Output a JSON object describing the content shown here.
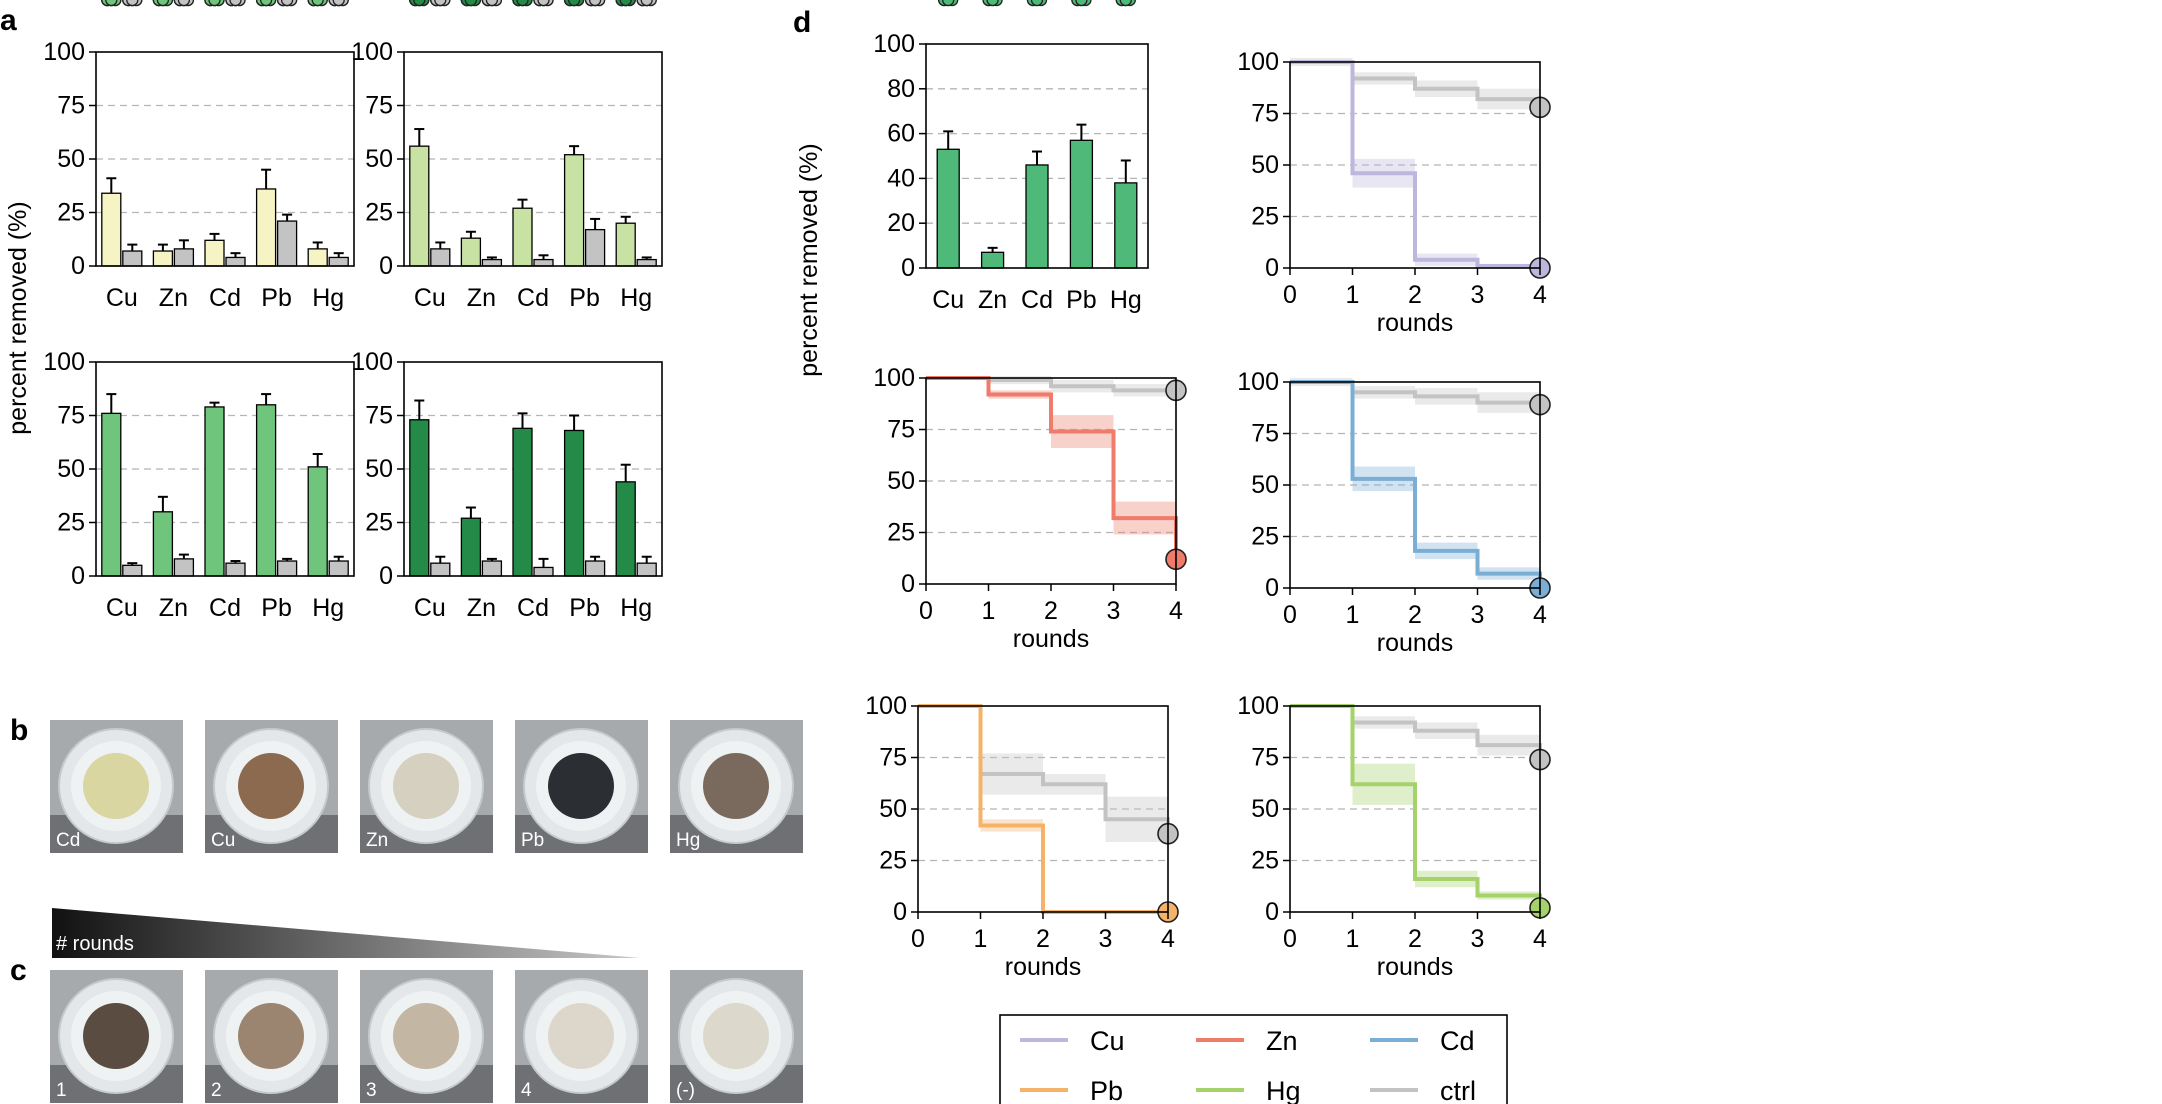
{
  "figure": {
    "panel_labels": [
      "a",
      "b",
      "c",
      "d"
    ],
    "ylabel": "percent removed (%)",
    "xlabel_rounds": "rounds",
    "rounds_gradient_label": "# rounds"
  },
  "colors": {
    "panel_a_1": "#f6f3c4",
    "panel_a_2": "#c7e2a3",
    "panel_a_3": "#6fc57c",
    "panel_a_4": "#238a47",
    "panel_d_bar": "#4fb97a",
    "ctrl": "#c3c3c3",
    "Cu": "#bdb6dd",
    "Zn": "#ef7c6b",
    "Cd": "#7aaed4",
    "Pb": "#f5b36a",
    "Hg": "#a6d26a"
  },
  "chart_data": [
    {
      "id": "a1",
      "type": "bar",
      "ylim": [
        0,
        100
      ],
      "yticks": [
        0,
        25,
        50,
        75,
        100
      ],
      "categories": [
        "Cu",
        "Zn",
        "Cd",
        "Pb",
        "Hg"
      ],
      "series": [
        {
          "values": [
            34,
            7,
            12,
            36,
            8
          ],
          "errors": [
            7,
            3,
            3,
            9,
            3
          ],
          "points": [
            [
              33,
              41,
              22
            ],
            [
              6,
              9,
              5
            ],
            [
              11,
              15,
              10
            ],
            [
              36,
              47,
              27
            ],
            [
              7,
              11,
              6
            ]
          ]
        },
        {
          "values": [
            7,
            8,
            4,
            21,
            4
          ],
          "errors": [
            3,
            4,
            2,
            3,
            2
          ],
          "points": [
            [
              6,
              9,
              5
            ],
            [
              7,
              12,
              5
            ],
            [
              4,
              6,
              3
            ],
            [
              21,
              24,
              19
            ],
            [
              4,
              5,
              3
            ]
          ]
        }
      ]
    },
    {
      "id": "a2",
      "type": "bar",
      "ylim": [
        0,
        100
      ],
      "yticks": [
        0,
        25,
        50,
        75,
        100
      ],
      "categories": [
        "Cu",
        "Zn",
        "Cd",
        "Pb",
        "Hg"
      ],
      "series": [
        {
          "values": [
            56,
            13,
            27,
            52,
            20
          ],
          "errors": [
            8,
            3,
            4,
            4,
            3
          ],
          "points": [
            [
              48,
              61,
              63
            ],
            [
              12,
              15,
              13
            ],
            [
              26,
              31,
              25
            ],
            [
              49,
              55,
              57
            ],
            [
              19,
              22,
              21
            ]
          ]
        },
        {
          "values": [
            8,
            3,
            3,
            17,
            3
          ],
          "errors": [
            3,
            1,
            2,
            5,
            1
          ],
          "points": [
            [
              7,
              10,
              7
            ],
            [
              3,
              4,
              2
            ],
            [
              3,
              4,
              2
            ],
            [
              14,
              21,
              16
            ],
            [
              3,
              2,
              3
            ]
          ]
        }
      ]
    },
    {
      "id": "a3",
      "type": "bar",
      "ylim": [
        0,
        100
      ],
      "yticks": [
        0,
        25,
        50,
        75,
        100
      ],
      "categories": [
        "Cu",
        "Zn",
        "Cd",
        "Pb",
        "Hg"
      ],
      "series": [
        {
          "values": [
            76,
            30,
            79,
            80,
            51
          ],
          "errors": [
            9,
            7,
            2,
            5,
            6
          ],
          "points": [
            [
              67,
              76,
              86
            ],
            [
              21,
              30,
              37
            ],
            [
              78,
              79,
              81
            ],
            [
              74,
              80,
              86
            ],
            [
              44,
              51,
              58
            ]
          ]
        },
        {
          "values": [
            5,
            8,
            6,
            7,
            7
          ],
          "errors": [
            1,
            2,
            1,
            1,
            2
          ],
          "points": [
            [
              5,
              4,
              5
            ],
            [
              8,
              10,
              7
            ],
            [
              6,
              6,
              6
            ],
            [
              7,
              6,
              7
            ],
            [
              7,
              9,
              6
            ]
          ]
        }
      ]
    },
    {
      "id": "a4",
      "type": "bar",
      "ylim": [
        0,
        100
      ],
      "yticks": [
        0,
        25,
        50,
        75,
        100
      ],
      "categories": [
        "Cu",
        "Zn",
        "Cd",
        "Pb",
        "Hg"
      ],
      "series": [
        {
          "values": [
            73,
            27,
            69,
            68,
            44
          ],
          "errors": [
            9,
            5,
            7,
            7,
            8
          ],
          "points": [
            [
              62,
              77,
              83
            ],
            [
              20,
              27,
              31
            ],
            [
              61,
              69,
              77
            ],
            [
              61,
              68,
              76
            ],
            [
              39,
              44,
              53
            ]
          ]
        },
        {
          "values": [
            6,
            7,
            4,
            7,
            6
          ],
          "errors": [
            3,
            1,
            4,
            2,
            3
          ],
          "points": [
            [
              4,
              8,
              6
            ],
            [
              6,
              7,
              7
            ],
            [
              1,
              4,
              7
            ],
            [
              5,
              8,
              7
            ],
            [
              3,
              6,
              8
            ]
          ]
        }
      ]
    },
    {
      "id": "d_bar",
      "type": "bar",
      "ylim": [
        0,
        100
      ],
      "yticks": [
        0,
        20,
        40,
        60,
        80,
        100
      ],
      "categories": [
        "Cu",
        "Zn",
        "Cd",
        "Pb",
        "Hg"
      ],
      "series": [
        {
          "values": [
            53,
            7,
            46,
            57,
            38
          ],
          "errors": [
            8,
            2,
            6,
            7,
            10
          ],
          "points": [
            [
              46,
              54,
              61
            ],
            [
              5,
              7,
              9
            ],
            [
              40,
              46,
              51
            ],
            [
              51,
              57,
              65
            ],
            [
              25,
              40,
              48
            ]
          ]
        }
      ]
    },
    {
      "id": "d_cu",
      "type": "line",
      "step": true,
      "x": [
        0,
        1,
        2,
        3,
        4
      ],
      "xlim": [
        0,
        4
      ],
      "ylim": [
        0,
        100
      ],
      "xticks": [
        0,
        1,
        2,
        3,
        4
      ],
      "yticks": [
        0,
        25,
        50,
        75,
        100
      ],
      "xlabel": "rounds",
      "series": [
        {
          "name": "ctrl",
          "values": [
            100,
            92,
            87,
            82,
            78
          ],
          "band": [
            2,
            3,
            4,
            5,
            6
          ]
        },
        {
          "name": "Cu",
          "values": [
            100,
            46,
            4,
            1,
            0
          ],
          "band": [
            1,
            7,
            3,
            1,
            1
          ]
        }
      ]
    },
    {
      "id": "d_zn",
      "type": "line",
      "step": true,
      "x": [
        0,
        1,
        2,
        3,
        4
      ],
      "xlim": [
        0,
        4
      ],
      "ylim": [
        0,
        100
      ],
      "xticks": [
        0,
        1,
        2,
        3,
        4
      ],
      "yticks": [
        0,
        25,
        50,
        75,
        100
      ],
      "xlabel": "rounds",
      "series": [
        {
          "name": "ctrl",
          "values": [
            100,
            99,
            96,
            94,
            94
          ],
          "band": [
            1,
            2,
            3,
            3,
            3
          ]
        },
        {
          "name": "Zn",
          "values": [
            100,
            92,
            74,
            32,
            12
          ],
          "band": [
            1,
            2,
            8,
            8,
            3
          ]
        }
      ]
    },
    {
      "id": "d_cd",
      "type": "line",
      "step": true,
      "x": [
        0,
        1,
        2,
        3,
        4
      ],
      "xlim": [
        0,
        4
      ],
      "ylim": [
        0,
        100
      ],
      "xticks": [
        0,
        1,
        2,
        3,
        4
      ],
      "yticks": [
        0,
        25,
        50,
        75,
        100
      ],
      "xlabel": "rounds",
      "series": [
        {
          "name": "ctrl",
          "values": [
            100,
            95,
            93,
            90,
            89
          ],
          "band": [
            2,
            3,
            4,
            5,
            5
          ]
        },
        {
          "name": "Cd",
          "values": [
            100,
            53,
            18,
            7,
            0
          ],
          "band": [
            1,
            6,
            4,
            3,
            1
          ]
        }
      ]
    },
    {
      "id": "d_pb",
      "type": "line",
      "step": true,
      "x": [
        0,
        1,
        2,
        3,
        4
      ],
      "xlim": [
        0,
        4
      ],
      "ylim": [
        0,
        100
      ],
      "xticks": [
        0,
        1,
        2,
        3,
        4
      ],
      "yticks": [
        0,
        25,
        50,
        75,
        100
      ],
      "xlabel": "rounds",
      "series": [
        {
          "name": "ctrl",
          "values": [
            100,
            67,
            62,
            45,
            38
          ],
          "band": [
            1,
            10,
            5,
            11,
            8
          ]
        },
        {
          "name": "Pb",
          "values": [
            100,
            42,
            0,
            0,
            0
          ],
          "band": [
            1,
            3,
            1,
            1,
            1
          ]
        }
      ]
    },
    {
      "id": "d_hg",
      "type": "line",
      "step": true,
      "x": [
        0,
        1,
        2,
        3,
        4
      ],
      "xlim": [
        0,
        4
      ],
      "ylim": [
        0,
        100
      ],
      "xticks": [
        0,
        1,
        2,
        3,
        4
      ],
      "yticks": [
        0,
        25,
        50,
        75,
        100
      ],
      "xlabel": "rounds",
      "series": [
        {
          "name": "ctrl",
          "values": [
            100,
            92,
            88,
            81,
            74
          ],
          "band": [
            1,
            3,
            4,
            5,
            6
          ]
        },
        {
          "name": "Hg",
          "values": [
            100,
            62,
            16,
            8,
            2
          ],
          "band": [
            1,
            10,
            4,
            2,
            1
          ]
        }
      ]
    }
  ],
  "legend": {
    "entries": [
      "Cu",
      "Zn",
      "Cd",
      "Pb",
      "Hg",
      "ctrl"
    ]
  },
  "photos_b": {
    "items": [
      {
        "label": "Cd",
        "center": "#d9d6a2"
      },
      {
        "label": "Cu",
        "center": "#8b6a50"
      },
      {
        "label": "Zn",
        "center": "#d5d0c0"
      },
      {
        "label": "Pb",
        "center": "#2b2e33"
      },
      {
        "label": "Hg",
        "center": "#7a6a5d"
      }
    ]
  },
  "photos_c": {
    "items": [
      {
        "label": "1",
        "center": "#5b4c42"
      },
      {
        "label": "2",
        "center": "#9c8570"
      },
      {
        "label": "3",
        "center": "#c3b6a3"
      },
      {
        "label": "4",
        "center": "#ddd7cb"
      },
      {
        "label": "(-)",
        "center": "#dcd8cc"
      }
    ]
  }
}
